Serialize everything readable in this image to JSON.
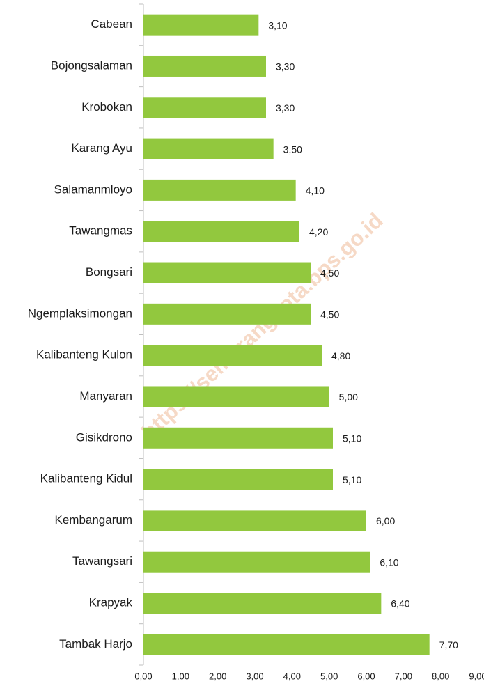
{
  "chart_data": {
    "type": "hbar",
    "categories": [
      "Cabean",
      "Bojongsalaman",
      "Krobokan",
      "Karang Ayu",
      "Salamanmloyo",
      "Tawangmas",
      "Bongsari",
      "Ngemplaksimongan",
      "Kalibanteng Kulon",
      "Manyaran",
      "Gisikdrono",
      "Kalibanteng Kidul",
      "Kembangarum",
      "Tawangsari",
      "Krapyak",
      "Tambak Harjo"
    ],
    "values": [
      3.1,
      3.3,
      3.3,
      3.5,
      4.1,
      4.2,
      4.5,
      4.5,
      4.8,
      5.0,
      5.1,
      5.1,
      6.0,
      6.1,
      6.4,
      7.7
    ],
    "value_labels": [
      "3,10",
      "3,30",
      "3,30",
      "3,50",
      "4,10",
      "4,20",
      "4,50",
      "4,50",
      "4,80",
      "5,00",
      "5,10",
      "5,10",
      "6,00",
      "6,10",
      "6,40",
      "7,70"
    ],
    "color": "#92c83e",
    "xlim": [
      0,
      9
    ],
    "xticks": [
      {
        "value": 0,
        "label": "0,00"
      },
      {
        "value": 1,
        "label": "1,00"
      },
      {
        "value": 2,
        "label": "2,00"
      },
      {
        "value": 3,
        "label": "3,00"
      },
      {
        "value": 4,
        "label": "4,00"
      },
      {
        "value": 5,
        "label": "5,00"
      },
      {
        "value": 6,
        "label": "6,00"
      },
      {
        "value": 7,
        "label": "7,00"
      },
      {
        "value": 8,
        "label": "8,00"
      },
      {
        "value": 9,
        "label": "9,00"
      }
    ],
    "grid": false,
    "watermark": "https://semarangkota.bps.go.id"
  }
}
